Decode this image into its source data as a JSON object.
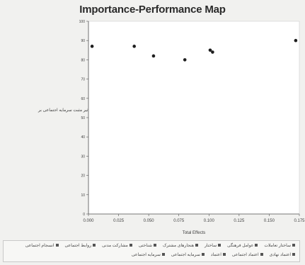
{
  "chart_data": {
    "type": "scatter",
    "title": "Importance-Performance Map",
    "xlabel": "Total Effects",
    "ylabel": "تاثیر مثبت سرمایه اجتماعی بر",
    "xlim": [
      0.0,
      0.175
    ],
    "ylim": [
      0,
      100
    ],
    "x_ticks": [
      "0.000",
      "0.025",
      "0.050",
      "0.075",
      "0.100",
      "0.125",
      "0.150",
      "0.175"
    ],
    "y_ticks": [
      0,
      10,
      20,
      30,
      40,
      50,
      60,
      70,
      80,
      90,
      100
    ],
    "grid": false,
    "points": [
      {
        "x": 0.003,
        "y": 87
      },
      {
        "x": 0.038,
        "y": 87
      },
      {
        "x": 0.054,
        "y": 82
      },
      {
        "x": 0.08,
        "y": 80
      },
      {
        "x": 0.101,
        "y": 85
      },
      {
        "x": 0.103,
        "y": 84
      },
      {
        "x": 0.172,
        "y": 90
      }
    ],
    "legend": {
      "position": "bottom",
      "items": [
        "ساختار تعاملات",
        "عوامل فرهنگی",
        "ساختار",
        "هنجارهای مشترک",
        "شناختی",
        "مشارکت مدنی",
        "روابط اجتماعی",
        "انسجام اجتماعی",
        "اعتماد نهادی",
        "اعتماد اجتماعی",
        "اعتماد",
        "سرمایه اجتماعی",
        "سرمایه اجتماعی"
      ]
    }
  }
}
